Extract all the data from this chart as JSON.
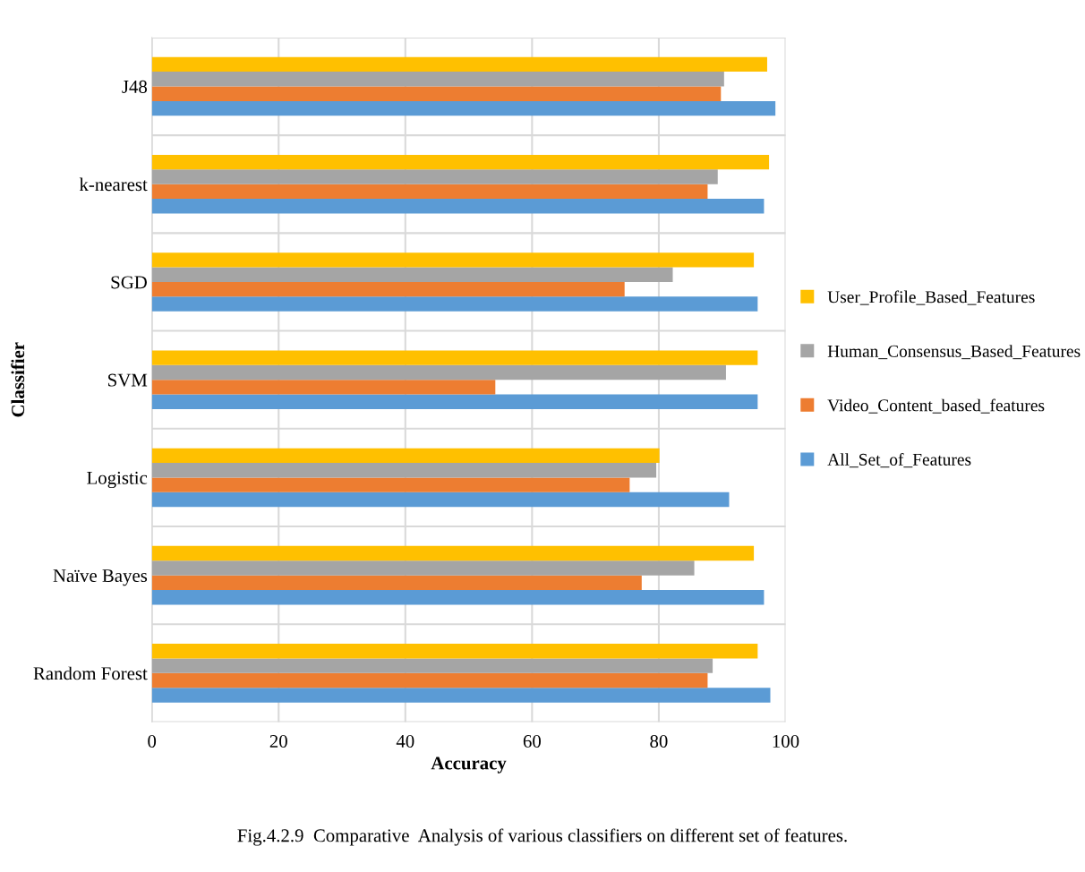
{
  "chart_data": {
    "type": "bar",
    "orientation": "horizontal",
    "categories": [
      "J48",
      "k-nearest",
      "SGD",
      "SVM",
      "Logistic",
      "Naïve Bayes",
      "Random Forest"
    ],
    "series": [
      {
        "name": "All_Set_of_Features",
        "color": "#5b9bd5",
        "values": [
          98.4,
          96.6,
          95.6,
          95.6,
          91.1,
          96.6,
          97.6
        ]
      },
      {
        "name": "Video_Content_based_features",
        "color": "#ed7d31",
        "values": [
          89.8,
          87.7,
          74.6,
          54.2,
          75.4,
          77.3,
          87.7
        ]
      },
      {
        "name": "Human_Consensus_Based_Features",
        "color": "#a5a5a5",
        "values": [
          90.3,
          89.3,
          82.2,
          90.6,
          79.6,
          85.6,
          88.5
        ]
      },
      {
        "name": "User_Profile_Based_Features",
        "color": "#ffc000",
        "values": [
          97.1,
          97.4,
          95.0,
          95.6,
          80.1,
          95.0,
          95.6
        ]
      }
    ],
    "xlim": [
      0,
      100
    ],
    "xticks": [
      0,
      20,
      40,
      60,
      80,
      100
    ],
    "xlabel": "Accuracy",
    "ylabel": "Classifier",
    "grid": true,
    "legend": "right",
    "annotations": [
      "Fig.4.2.9  Comparative  Analysis of various classifiers on different set of features."
    ]
  }
}
